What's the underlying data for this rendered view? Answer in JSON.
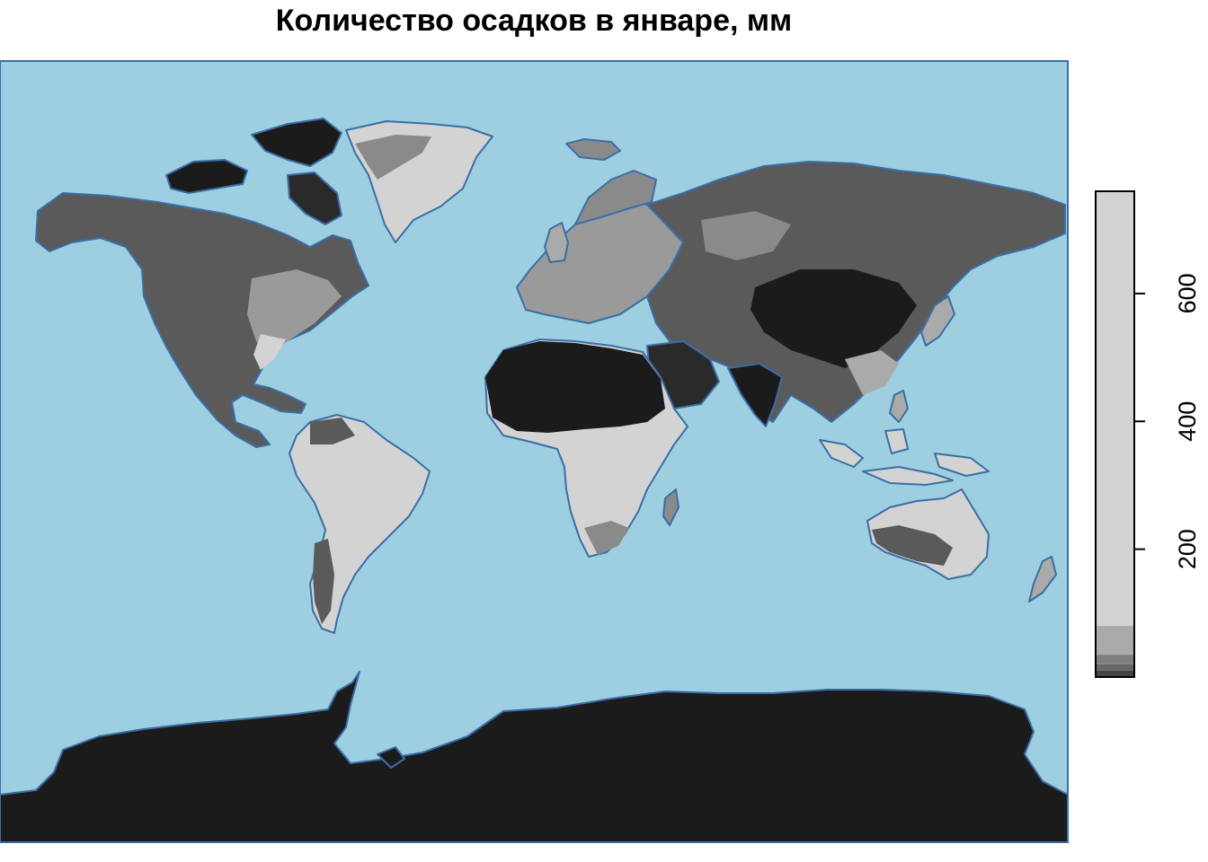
{
  "title": "Количество осадков в январе, мм",
  "colors": {
    "ocean": "#9ecfe0",
    "coast": "#3a6ea8",
    "land_dark": "#1b1b1b",
    "land_mid": "#555555",
    "land_grey": "#8a8a8a",
    "land_light": "#d3d3d3",
    "land_mid_light": "#aaaaaa"
  },
  "legend": {
    "ticks": [
      {
        "value": 200,
        "label": "200"
      },
      {
        "value": 400,
        "label": "400"
      },
      {
        "value": 600,
        "label": "600"
      }
    ],
    "range": [
      0,
      760
    ],
    "bands": [
      {
        "from": 0,
        "to": 10,
        "color": "#444444"
      },
      {
        "from": 10,
        "to": 20,
        "color": "#666666"
      },
      {
        "from": 20,
        "to": 35,
        "color": "#7f7f7f"
      },
      {
        "from": 35,
        "to": 80,
        "color": "#aaaaaa"
      },
      {
        "from": 80,
        "to": 760,
        "color": "#d3d3d3"
      }
    ]
  }
}
